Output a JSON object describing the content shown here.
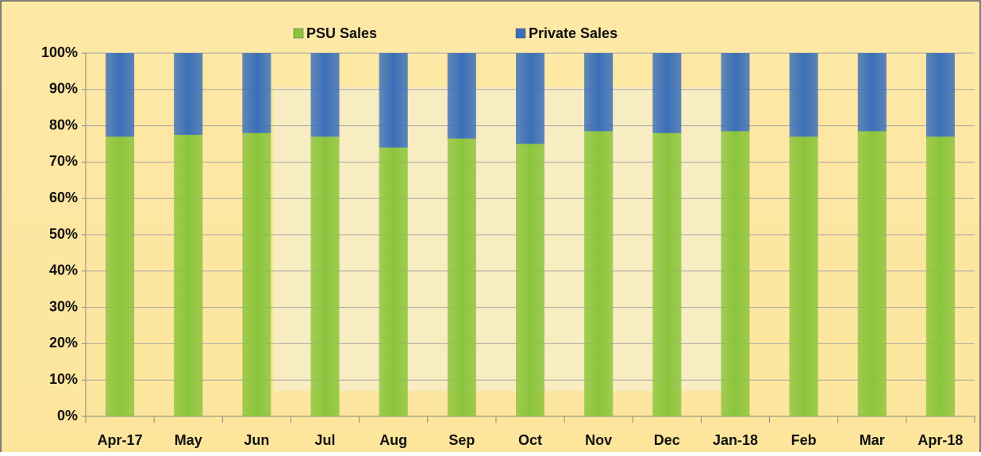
{
  "chart_data": {
    "type": "stacked_bar_100",
    "categories": [
      "Apr-17",
      "May",
      "Jun",
      "Jul",
      "Aug",
      "Sep",
      "Oct",
      "Nov",
      "Dec",
      "Jan-18",
      "Feb",
      "Mar",
      "Apr-18"
    ],
    "series": [
      {
        "name": "PSU Sales",
        "color": "#8cc43c",
        "values": [
          77,
          77.5,
          78,
          77,
          74,
          76.5,
          75,
          78.5,
          78,
          78.5,
          77,
          78.5,
          77
        ]
      },
      {
        "name": "Private Sales",
        "color": "#3a6fb8",
        "values": [
          23,
          22.5,
          22,
          23,
          26,
          23.5,
          25,
          21.5,
          22,
          21.5,
          23,
          21.5,
          23
        ]
      }
    ],
    "ylim": [
      0,
      100
    ],
    "yticks": [
      {
        "value": 0,
        "label": "0%"
      },
      {
        "value": 10,
        "label": "10%"
      },
      {
        "value": 20,
        "label": "20%"
      },
      {
        "value": 30,
        "label": "30%"
      },
      {
        "value": 40,
        "label": "40%"
      },
      {
        "value": 50,
        "label": "50%"
      },
      {
        "value": 60,
        "label": "60%"
      },
      {
        "value": 70,
        "label": "70%"
      },
      {
        "value": 80,
        "label": "80%"
      },
      {
        "value": 90,
        "label": "90%"
      },
      {
        "value": 100,
        "label": "100%"
      }
    ],
    "grid": true,
    "legend": "top"
  }
}
